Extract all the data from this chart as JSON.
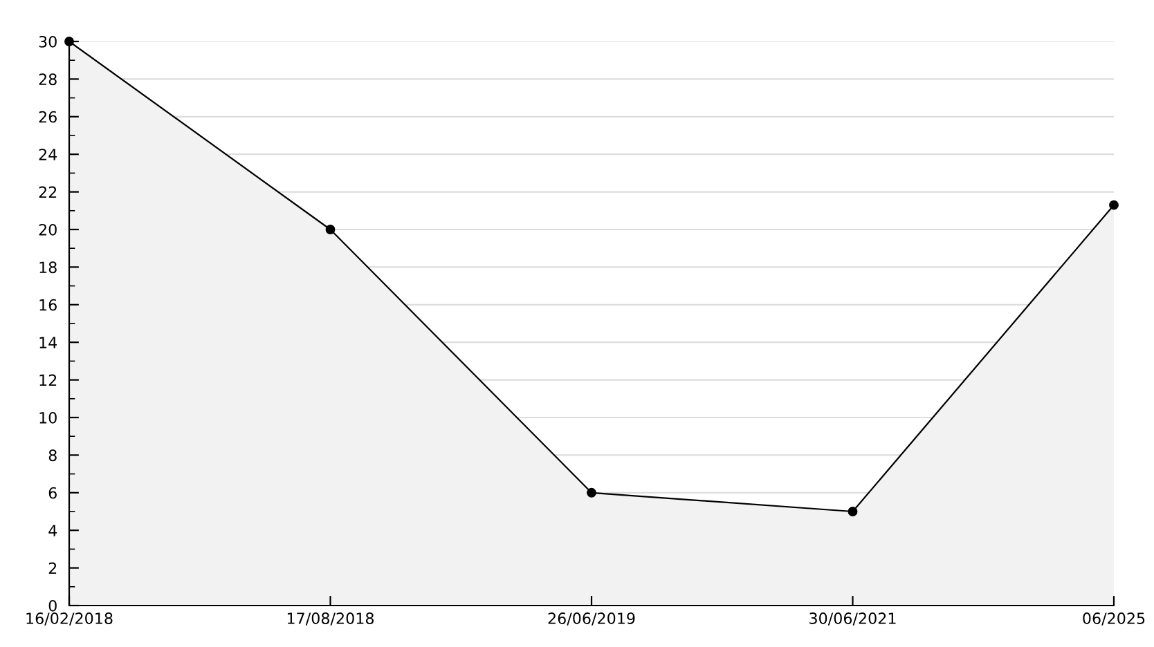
{
  "chart_data": {
    "type": "area",
    "categories": [
      "16/02/2018",
      "17/08/2018",
      "26/06/2019",
      "30/06/2021",
      "06/2025"
    ],
    "series": [
      {
        "color": "#f2f2f2",
        "values": [
          30,
          20,
          6,
          5,
          21.3
        ]
      }
    ],
    "ylim": [
      0,
      30
    ],
    "yticks": [
      0,
      {
        "value": 1,
        "label": null
      },
      2,
      {
        "value": 3,
        "label": null
      },
      4,
      {
        "value": 5,
        "label": null
      },
      6,
      {
        "value": 7,
        "label": null
      },
      8,
      {
        "value": 9,
        "label": null
      },
      10,
      {
        "value": 11,
        "label": null
      },
      12,
      {
        "value": 13,
        "label": null
      },
      14,
      {
        "value": 15,
        "label": null
      },
      16,
      {
        "value": 17,
        "label": null
      },
      18,
      {
        "value": 19,
        "label": null
      },
      20,
      {
        "value": 21,
        "label": null
      },
      22,
      {
        "value": 23,
        "label": null
      },
      24,
      {
        "value": 25,
        "label": null
      },
      26,
      {
        "value": 27,
        "label": null
      },
      28,
      {
        "value": 29,
        "label": null
      },
      30
    ],
    "grid": "y",
    "marker": "circle",
    "line_style": "solid",
    "legend": false
  }
}
